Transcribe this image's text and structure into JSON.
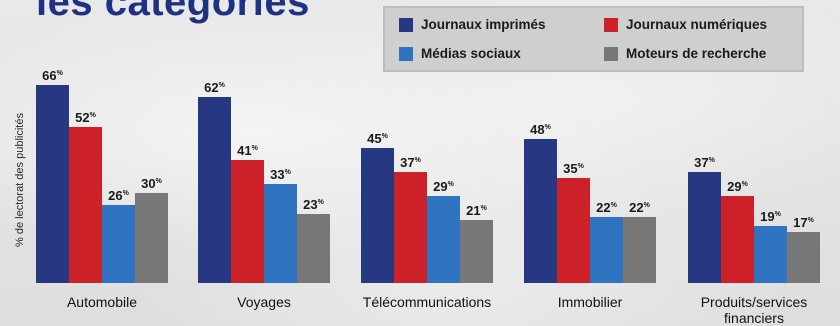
{
  "chart_data": {
    "type": "bar",
    "title": "les catégories",
    "ylabel": "% de lectorat des publicités",
    "xlabel": "",
    "ylim": [
      0,
      70
    ],
    "grid": false,
    "legend_position": "top-right",
    "value_suffix": "%",
    "categories": [
      "Automobile",
      "Voyages",
      "Télécommunications",
      "Immobilier",
      "Produits/services financiers"
    ],
    "series": [
      {
        "name": "Journaux imprimés",
        "color": "#263882",
        "values": [
          66,
          62,
          45,
          48,
          37
        ]
      },
      {
        "name": "Journaux numériques",
        "color": "#cc2128",
        "values": [
          52,
          41,
          37,
          35,
          29
        ]
      },
      {
        "name": "Médias sociaux",
        "color": "#2f74c0",
        "values": [
          26,
          33,
          29,
          22,
          19
        ]
      },
      {
        "name": "Moteurs de recherche",
        "color": "#777777",
        "values": [
          30,
          23,
          21,
          22,
          17
        ]
      }
    ]
  }
}
